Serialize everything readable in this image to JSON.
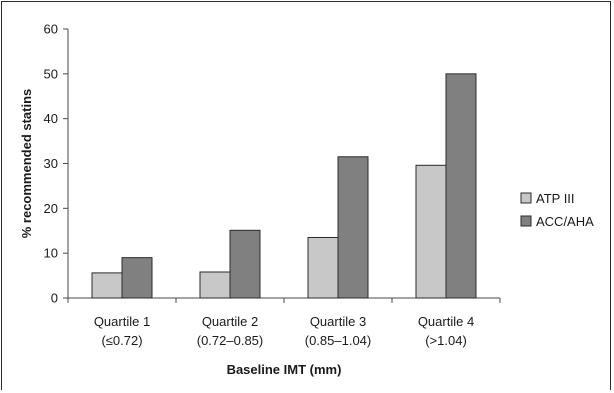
{
  "chart_data": {
    "type": "bar",
    "title": "",
    "xlabel": "Baseline IMT (mm)",
    "ylabel": "% recommended statins",
    "ylim": [
      0,
      60
    ],
    "yticks": [
      0,
      10,
      20,
      30,
      40,
      50,
      60
    ],
    "categories": [
      {
        "line1": "Quartile 1",
        "line2": "(≤0.72)"
      },
      {
        "line1": "Quartile 2",
        "line2": "(0.72–0.85)"
      },
      {
        "line1": "Quartile 3",
        "line2": "(0.85–1.04)"
      },
      {
        "line1": "Quartile 4",
        "line2": "(>1.04)"
      }
    ],
    "series": [
      {
        "name": "ATP III",
        "color": "#c8c8c8",
        "values": [
          5.6,
          5.8,
          13.5,
          29.6
        ]
      },
      {
        "name": "ACC/AHA",
        "color": "#808080",
        "values": [
          9.0,
          15.1,
          31.5,
          50.0
        ]
      }
    ],
    "grid": false,
    "legend_position": "right"
  }
}
